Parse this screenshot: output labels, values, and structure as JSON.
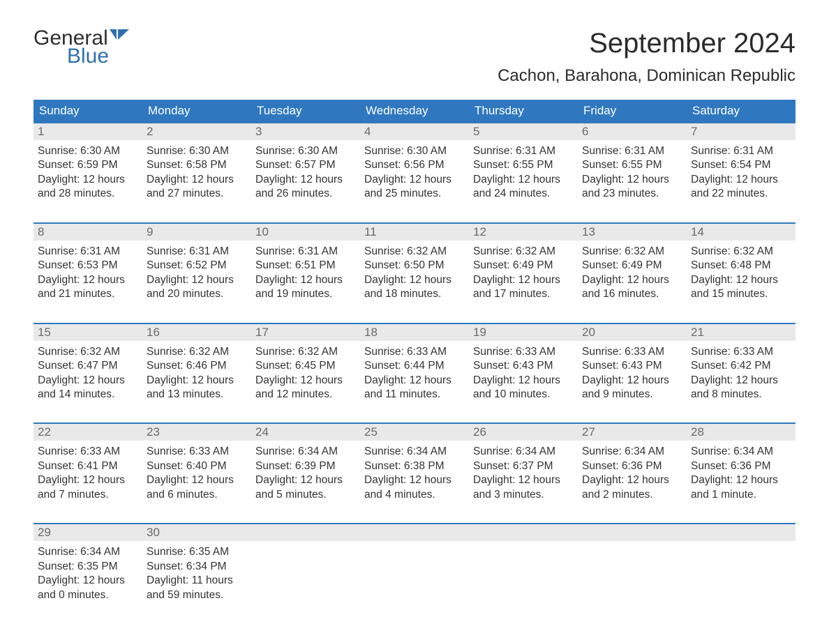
{
  "brand": {
    "word1": "General",
    "word2": "Blue",
    "word1_color": "#2e2e2e",
    "word2_color": "#2f6fb0",
    "flag_color": "#2f6fb0"
  },
  "header": {
    "month_title": "September 2024",
    "location": "Cachon, Barahona, Dominican Republic"
  },
  "colors": {
    "header_bg": "#2f78bf",
    "header_text": "#ffffff",
    "daynum_bg": "#e9e9e9",
    "daynum_text": "#6a6a6a",
    "cell_border": "#2f78bf",
    "body_text": "#333333",
    "page_bg": "#ffffff"
  },
  "typography": {
    "month_title_fontsize": 40,
    "location_fontsize": 24,
    "header_fontsize": 17,
    "daynum_fontsize": 17,
    "body_fontsize": 15.5,
    "font_family": "Arial"
  },
  "calendar": {
    "type": "table",
    "columns": [
      "Sunday",
      "Monday",
      "Tuesday",
      "Wednesday",
      "Thursday",
      "Friday",
      "Saturday"
    ],
    "weeks": [
      {
        "days": [
          {
            "n": "1",
            "sunrise": "Sunrise: 6:30 AM",
            "sunset": "Sunset: 6:59 PM",
            "d1": "Daylight: 12 hours",
            "d2": "and 28 minutes."
          },
          {
            "n": "2",
            "sunrise": "Sunrise: 6:30 AM",
            "sunset": "Sunset: 6:58 PM",
            "d1": "Daylight: 12 hours",
            "d2": "and 27 minutes."
          },
          {
            "n": "3",
            "sunrise": "Sunrise: 6:30 AM",
            "sunset": "Sunset: 6:57 PM",
            "d1": "Daylight: 12 hours",
            "d2": "and 26 minutes."
          },
          {
            "n": "4",
            "sunrise": "Sunrise: 6:30 AM",
            "sunset": "Sunset: 6:56 PM",
            "d1": "Daylight: 12 hours",
            "d2": "and 25 minutes."
          },
          {
            "n": "5",
            "sunrise": "Sunrise: 6:31 AM",
            "sunset": "Sunset: 6:55 PM",
            "d1": "Daylight: 12 hours",
            "d2": "and 24 minutes."
          },
          {
            "n": "6",
            "sunrise": "Sunrise: 6:31 AM",
            "sunset": "Sunset: 6:55 PM",
            "d1": "Daylight: 12 hours",
            "d2": "and 23 minutes."
          },
          {
            "n": "7",
            "sunrise": "Sunrise: 6:31 AM",
            "sunset": "Sunset: 6:54 PM",
            "d1": "Daylight: 12 hours",
            "d2": "and 22 minutes."
          }
        ]
      },
      {
        "days": [
          {
            "n": "8",
            "sunrise": "Sunrise: 6:31 AM",
            "sunset": "Sunset: 6:53 PM",
            "d1": "Daylight: 12 hours",
            "d2": "and 21 minutes."
          },
          {
            "n": "9",
            "sunrise": "Sunrise: 6:31 AM",
            "sunset": "Sunset: 6:52 PM",
            "d1": "Daylight: 12 hours",
            "d2": "and 20 minutes."
          },
          {
            "n": "10",
            "sunrise": "Sunrise: 6:31 AM",
            "sunset": "Sunset: 6:51 PM",
            "d1": "Daylight: 12 hours",
            "d2": "and 19 minutes."
          },
          {
            "n": "11",
            "sunrise": "Sunrise: 6:32 AM",
            "sunset": "Sunset: 6:50 PM",
            "d1": "Daylight: 12 hours",
            "d2": "and 18 minutes."
          },
          {
            "n": "12",
            "sunrise": "Sunrise: 6:32 AM",
            "sunset": "Sunset: 6:49 PM",
            "d1": "Daylight: 12 hours",
            "d2": "and 17 minutes."
          },
          {
            "n": "13",
            "sunrise": "Sunrise: 6:32 AM",
            "sunset": "Sunset: 6:49 PM",
            "d1": "Daylight: 12 hours",
            "d2": "and 16 minutes."
          },
          {
            "n": "14",
            "sunrise": "Sunrise: 6:32 AM",
            "sunset": "Sunset: 6:48 PM",
            "d1": "Daylight: 12 hours",
            "d2": "and 15 minutes."
          }
        ]
      },
      {
        "days": [
          {
            "n": "15",
            "sunrise": "Sunrise: 6:32 AM",
            "sunset": "Sunset: 6:47 PM",
            "d1": "Daylight: 12 hours",
            "d2": "and 14 minutes."
          },
          {
            "n": "16",
            "sunrise": "Sunrise: 6:32 AM",
            "sunset": "Sunset: 6:46 PM",
            "d1": "Daylight: 12 hours",
            "d2": "and 13 minutes."
          },
          {
            "n": "17",
            "sunrise": "Sunrise: 6:32 AM",
            "sunset": "Sunset: 6:45 PM",
            "d1": "Daylight: 12 hours",
            "d2": "and 12 minutes."
          },
          {
            "n": "18",
            "sunrise": "Sunrise: 6:33 AM",
            "sunset": "Sunset: 6:44 PM",
            "d1": "Daylight: 12 hours",
            "d2": "and 11 minutes."
          },
          {
            "n": "19",
            "sunrise": "Sunrise: 6:33 AM",
            "sunset": "Sunset: 6:43 PM",
            "d1": "Daylight: 12 hours",
            "d2": "and 10 minutes."
          },
          {
            "n": "20",
            "sunrise": "Sunrise: 6:33 AM",
            "sunset": "Sunset: 6:43 PM",
            "d1": "Daylight: 12 hours",
            "d2": "and 9 minutes."
          },
          {
            "n": "21",
            "sunrise": "Sunrise: 6:33 AM",
            "sunset": "Sunset: 6:42 PM",
            "d1": "Daylight: 12 hours",
            "d2": "and 8 minutes."
          }
        ]
      },
      {
        "days": [
          {
            "n": "22",
            "sunrise": "Sunrise: 6:33 AM",
            "sunset": "Sunset: 6:41 PM",
            "d1": "Daylight: 12 hours",
            "d2": "and 7 minutes."
          },
          {
            "n": "23",
            "sunrise": "Sunrise: 6:33 AM",
            "sunset": "Sunset: 6:40 PM",
            "d1": "Daylight: 12 hours",
            "d2": "and 6 minutes."
          },
          {
            "n": "24",
            "sunrise": "Sunrise: 6:34 AM",
            "sunset": "Sunset: 6:39 PM",
            "d1": "Daylight: 12 hours",
            "d2": "and 5 minutes."
          },
          {
            "n": "25",
            "sunrise": "Sunrise: 6:34 AM",
            "sunset": "Sunset: 6:38 PM",
            "d1": "Daylight: 12 hours",
            "d2": "and 4 minutes."
          },
          {
            "n": "26",
            "sunrise": "Sunrise: 6:34 AM",
            "sunset": "Sunset: 6:37 PM",
            "d1": "Daylight: 12 hours",
            "d2": "and 3 minutes."
          },
          {
            "n": "27",
            "sunrise": "Sunrise: 6:34 AM",
            "sunset": "Sunset: 6:36 PM",
            "d1": "Daylight: 12 hours",
            "d2": "and 2 minutes."
          },
          {
            "n": "28",
            "sunrise": "Sunrise: 6:34 AM",
            "sunset": "Sunset: 6:36 PM",
            "d1": "Daylight: 12 hours",
            "d2": "and 1 minute."
          }
        ]
      },
      {
        "days": [
          {
            "n": "29",
            "sunrise": "Sunrise: 6:34 AM",
            "sunset": "Sunset: 6:35 PM",
            "d1": "Daylight: 12 hours",
            "d2": "and 0 minutes."
          },
          {
            "n": "30",
            "sunrise": "Sunrise: 6:35 AM",
            "sunset": "Sunset: 6:34 PM",
            "d1": "Daylight: 11 hours",
            "d2": "and 59 minutes."
          },
          {
            "empty": true
          },
          {
            "empty": true
          },
          {
            "empty": true
          },
          {
            "empty": true
          },
          {
            "empty": true
          }
        ]
      }
    ]
  }
}
